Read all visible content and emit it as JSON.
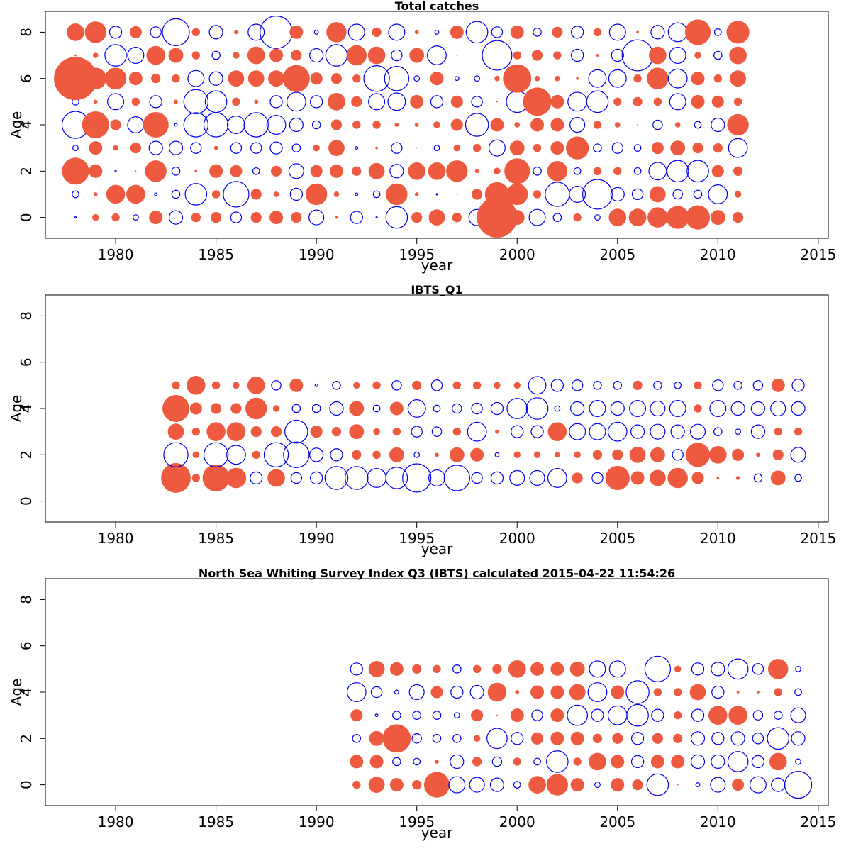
{
  "colors": {
    "positive": "#EE5A3F",
    "negative": "#0000EE",
    "axis": "#000000"
  },
  "chart_data": [
    {
      "type": "scatter",
      "title": "Total catches",
      "xlabel": "year",
      "ylabel": "Age",
      "xlim": [
        1976.5,
        2015.5
      ],
      "ylim": [
        -0.9,
        8.9
      ],
      "xticks": [
        1980,
        1985,
        1990,
        1995,
        2000,
        2005,
        2010,
        2015
      ],
      "yticks": [
        0,
        2,
        4,
        6,
        8
      ],
      "grid": false,
      "legend": "none",
      "x_start": 1978,
      "ages": [
        0,
        1,
        2,
        3,
        4,
        5,
        6,
        7,
        8
      ],
      "residuals": [
        [
          -0.1,
          -0.5,
          2.0,
          -0.4,
          -2.0,
          -0.5,
          3.2,
          0.15,
          1.3
        ],
        [
          0.5,
          0.3,
          1.0,
          1.0,
          2.0,
          0.3,
          1.6,
          0.4,
          1.6
        ],
        [
          0.6,
          1.4,
          -0.1,
          0.4,
          0.8,
          -1.2,
          1.6,
          -1.6,
          -0.9
        ],
        [
          -0.4,
          1.4,
          0.1,
          0.8,
          -1.2,
          0.6,
          1.0,
          -1.2,
          0.9
        ],
        [
          1.0,
          -0.2,
          1.6,
          -1.0,
          1.9,
          -0.9,
          0.7,
          1.4,
          -0.8
        ],
        [
          -1.0,
          -0.6,
          -0.6,
          -1.0,
          -0.2,
          0.3,
          0.6,
          1.1,
          -2.0
        ],
        [
          0.7,
          -1.6,
          0.2,
          -0.8,
          -1.8,
          -1.8,
          -1.2,
          0.6,
          0.6
        ],
        [
          0.8,
          0.6,
          1.0,
          0.3,
          -1.8,
          -1.6,
          -1.0,
          -0.6,
          -1.0
        ],
        [
          -0.8,
          -1.9,
          0.9,
          -0.8,
          -1.3,
          0.6,
          1.2,
          0.5,
          0.3
        ],
        [
          0.8,
          0.8,
          -0.5,
          -0.8,
          -1.8,
          0.3,
          1.2,
          1.3,
          -1.2
        ],
        [
          1.0,
          0.4,
          0.8,
          -0.9,
          -1.4,
          -0.9,
          1.2,
          1.0,
          -2.4
        ],
        [
          0.8,
          -0.9,
          -1.1,
          -0.6,
          -1.0,
          -1.4,
          2.0,
          0.8,
          1.0
        ],
        [
          -1.1,
          1.6,
          0.9,
          0.5,
          -0.6,
          -0.9,
          0.9,
          -1.0,
          -0.3
        ],
        [
          0.2,
          0.4,
          1.0,
          1.2,
          0.8,
          1.3,
          0.8,
          -1.6,
          1.5
        ],
        [
          -0.9,
          -0.2,
          0.7,
          -0.2,
          0.6,
          0.8,
          0.6,
          1.5,
          -1.2
        ],
        [
          -0.1,
          -0.5,
          1.2,
          0.2,
          0.6,
          -1.2,
          -1.9,
          1.3,
          0.7
        ],
        [
          -1.6,
          1.6,
          -1.0,
          -0.8,
          0.3,
          -1.3,
          -1.8,
          -0.8,
          -1.2
        ],
        [
          0.8,
          0.3,
          1.3,
          0.1,
          0.3,
          1.0,
          -0.4,
          1.1,
          0.3
        ],
        [
          1.2,
          -0.1,
          1.3,
          -0.4,
          0.5,
          -0.9,
          1.0,
          -1.4,
          -0.3
        ],
        [
          0.7,
          0.1,
          1.6,
          0.5,
          0.9,
          0.9,
          -0.3,
          0.1,
          1.0
        ],
        [
          -1.2,
          0.8,
          0.3,
          0.6,
          -1.7,
          -0.8,
          -0.4,
          0.0,
          -1.6
        ],
        [
          3.0,
          1.8,
          0.5,
          -1.2,
          1.0,
          0.1,
          0.4,
          -2.2,
          -0.8
        ],
        [
          1.1,
          1.6,
          1.9,
          1.1,
          0.4,
          -1.6,
          2.1,
          0.6,
          1.0
        ],
        [
          -1.2,
          0.6,
          -0.6,
          0.6,
          1.0,
          2.1,
          0.4,
          0.8,
          -0.6
        ],
        [
          -0.6,
          -1.8,
          1.5,
          1.0,
          1.0,
          1.0,
          0.4,
          0.6,
          0.8
        ],
        [
          0.6,
          -1.2,
          -0.5,
          1.7,
          -1.1,
          -1.4,
          0.2,
          -0.9,
          -0.9
        ],
        [
          -0.4,
          -2.2,
          0.6,
          -0.6,
          0.6,
          -1.6,
          -1.3,
          0.2,
          0.6
        ],
        [
          1.3,
          -1.0,
          0.6,
          -0.8,
          0.4,
          0.6,
          -1.3,
          -0.9,
          -1.2
        ],
        [
          1.3,
          -0.8,
          -0.5,
          -0.5,
          0.1,
          0.7,
          0.6,
          -2.3,
          0.2
        ],
        [
          1.5,
          1.2,
          -1.3,
          0.9,
          -0.7,
          0.6,
          1.6,
          1.3,
          -1.0
        ],
        [
          1.7,
          -0.7,
          -1.6,
          1.1,
          0.4,
          -1.2,
          -1.4,
          -1.2,
          -1.4
        ],
        [
          1.8,
          -0.6,
          -1.6,
          0.8,
          -0.5,
          1.0,
          1.0,
          0.5,
          1.9
        ],
        [
          1.1,
          -1.4,
          0.9,
          0.7,
          -1.0,
          0.9,
          0.6,
          -0.6,
          -0.5
        ],
        [
          0.8,
          0.5,
          0.7,
          -1.4,
          1.6,
          0.6,
          1.2,
          1.3,
          1.7
        ]
      ]
    },
    {
      "type": "scatter",
      "title": "IBTS_Q1",
      "xlabel": "year",
      "ylabel": "Age",
      "xlim": [
        1976.5,
        2015.5
      ],
      "ylim": [
        -0.9,
        8.9
      ],
      "xticks": [
        1980,
        1985,
        1990,
        1995,
        2000,
        2005,
        2010,
        2015
      ],
      "yticks": [
        0,
        2,
        4,
        6,
        8
      ],
      "grid": false,
      "legend": "none",
      "x_start": 1983,
      "ages": [
        1,
        2,
        3,
        4,
        5
      ],
      "residuals": [
        [
          2.2,
          -1.8,
          1.2,
          2.0,
          0.6
        ],
        [
          0.6,
          0.5,
          0.6,
          0.9,
          1.4
        ],
        [
          2.0,
          -1.8,
          1.4,
          0.8,
          0.6
        ],
        [
          1.5,
          -1.4,
          1.4,
          0.8,
          0.5
        ],
        [
          -0.9,
          0.6,
          0.8,
          1.6,
          1.3
        ],
        [
          1.3,
          -1.8,
          0.8,
          0.5,
          -0.7
        ],
        [
          -0.8,
          -1.9,
          -1.7,
          -0.6,
          1.0
        ],
        [
          -0.9,
          -1.0,
          0.9,
          -0.6,
          -0.2
        ],
        [
          -1.7,
          -0.9,
          0.7,
          -1.0,
          -0.6
        ],
        [
          -1.7,
          0.7,
          1.1,
          1.1,
          0.5
        ],
        [
          -1.4,
          0.6,
          0.5,
          -0.5,
          0.6
        ],
        [
          -1.6,
          1.1,
          0.6,
          1.0,
          -0.7
        ],
        [
          -2.1,
          -0.4,
          -0.8,
          -1.3,
          0.7
        ],
        [
          -1.2,
          0.3,
          -0.7,
          -0.5,
          -0.8
        ],
        [
          -1.9,
          1.1,
          0.6,
          -0.7,
          0.6
        ],
        [
          -0.8,
          1.0,
          -1.4,
          -0.8,
          0.6
        ],
        [
          -0.9,
          -0.3,
          0.3,
          -0.9,
          0.5
        ],
        [
          -1.1,
          0.5,
          -0.9,
          -1.5,
          0.5
        ],
        [
          -1.1,
          0.5,
          -0.9,
          -1.6,
          -1.3
        ],
        [
          -1.4,
          0.4,
          1.4,
          -0.4,
          -0.9
        ],
        [
          0.8,
          0.5,
          -1.2,
          -1.0,
          -0.8
        ],
        [
          -0.8,
          0.7,
          -1.2,
          -1.2,
          -0.6
        ],
        [
          1.8,
          0.8,
          -1.4,
          -1.0,
          -0.6
        ],
        [
          1.0,
          1.2,
          -1.0,
          -1.2,
          0.7
        ],
        [
          1.2,
          1.1,
          -1.1,
          -1.1,
          -0.6
        ],
        [
          1.5,
          -0.8,
          -1.0,
          -1.2,
          -0.5
        ],
        [
          0.9,
          1.8,
          -1.1,
          0.6,
          0.6
        ],
        [
          0.2,
          1.3,
          -0.6,
          -1.2,
          -0.8
        ],
        [
          0.3,
          0.9,
          -0.4,
          -1.0,
          -0.6
        ],
        [
          -0.6,
          0.3,
          -1.0,
          -1.0,
          -0.7
        ],
        [
          1.1,
          0.8,
          0.6,
          -1.1,
          1.0
        ],
        [
          -0.5,
          -1.1,
          0.6,
          -1.0,
          -0.9
        ]
      ]
    },
    {
      "type": "scatter",
      "title": "North Sea Whiting Survey Index Q3 (IBTS) calculated 2015-04-22 11:54:26",
      "xlabel": "year",
      "ylabel": "Age",
      "xlim": [
        1976.5,
        2015.5
      ],
      "ylim": [
        -0.9,
        8.9
      ],
      "xticks": [
        1980,
        1985,
        1990,
        1995,
        2000,
        2005,
        2010,
        2015
      ],
      "yticks": [
        0,
        2,
        4,
        6,
        8
      ],
      "grid": false,
      "legend": "none",
      "x_start": 1992,
      "ages": [
        0,
        1,
        2,
        3,
        4,
        5
      ],
      "residuals": [
        [
          0.6,
          1.0,
          -0.6,
          0.9,
          -1.4,
          -0.9
        ],
        [
          1.2,
          1.0,
          1.1,
          -0.2,
          -0.8,
          1.2
        ],
        [
          1.0,
          -0.6,
          2.1,
          -0.6,
          -0.3,
          1.0
        ],
        [
          0.7,
          -0.5,
          -0.7,
          -0.6,
          -1.1,
          0.7
        ],
        [
          1.9,
          0.3,
          -0.6,
          -0.6,
          0.9,
          0.6
        ],
        [
          -1.2,
          -1.0,
          -0.6,
          -0.4,
          -0.9,
          -0.6
        ],
        [
          -1.1,
          0.7,
          0.5,
          0.9,
          -1.0,
          0.6
        ],
        [
          -1.0,
          -0.7,
          -1.5,
          0.1,
          1.4,
          0.7
        ],
        [
          -0.5,
          0.6,
          -0.9,
          1.0,
          0.3,
          1.3
        ],
        [
          1.3,
          -0.5,
          0.9,
          -0.8,
          1.0,
          1.0
        ],
        [
          1.6,
          -1.6,
          1.0,
          1.0,
          1.0,
          1.0
        ],
        [
          1.0,
          0.6,
          1.0,
          -1.5,
          1.2,
          1.1
        ],
        [
          -0.4,
          1.3,
          0.7,
          -0.9,
          -1.4,
          -1.2
        ],
        [
          1.0,
          1.0,
          0.8,
          -1.4,
          1.0,
          -1.2
        ],
        [
          0.8,
          -0.9,
          -0.9,
          -1.6,
          -1.7,
          0.1
        ],
        [
          -1.6,
          1.0,
          0.8,
          -0.9,
          0.6,
          -1.9
        ],
        [
          0.1,
          1.0,
          0.7,
          0.6,
          0.6,
          0.5
        ],
        [
          -0.3,
          -1.0,
          -1.0,
          -0.9,
          1.2,
          -0.9
        ],
        [
          -1.1,
          -1.0,
          -0.9,
          1.4,
          -0.9,
          -1.0
        ],
        [
          0.9,
          -1.5,
          -1.0,
          1.4,
          0.2,
          -1.5
        ],
        [
          -1.2,
          -0.9,
          -0.8,
          -0.7,
          0.2,
          -0.8
        ],
        [
          -1.0,
          1.3,
          -1.6,
          -0.6,
          0.6,
          1.5
        ],
        [
          -2.0,
          -0.4,
          -1.0,
          -1.1,
          -0.5,
          -0.4
        ]
      ]
    }
  ]
}
